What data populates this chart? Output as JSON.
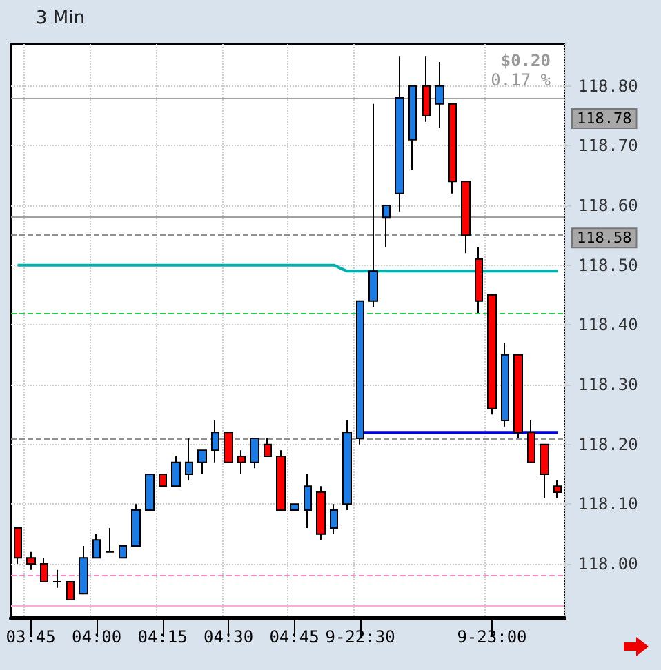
{
  "chart_data": {
    "type": "candlestick",
    "title": "3 Min",
    "categories": [
      null,
      "03:45",
      null,
      null,
      null,
      null,
      "04:00",
      null,
      null,
      null,
      null,
      "04:15",
      null,
      null,
      null,
      null,
      "04:30",
      null,
      null,
      null,
      null,
      "04:45",
      null,
      null,
      null,
      null,
      "9-22:30",
      null,
      null,
      null,
      null,
      null,
      null,
      null,
      null,
      null,
      "9-23:00",
      null,
      null,
      null,
      null,
      null
    ],
    "ohlc": [
      [
        118.06,
        118.06,
        118.0,
        118.01
      ],
      [
        118.01,
        118.02,
        117.99,
        118.0
      ],
      [
        118.0,
        118.01,
        117.97,
        117.97
      ],
      [
        117.97,
        117.99,
        117.96,
        117.97
      ],
      [
        117.97,
        117.97,
        117.94,
        117.94
      ],
      [
        117.95,
        118.03,
        117.95,
        118.01
      ],
      [
        118.01,
        118.05,
        118.01,
        118.04
      ],
      [
        118.02,
        118.06,
        118.02,
        118.02
      ],
      [
        118.01,
        118.03,
        118.01,
        118.03
      ],
      [
        118.03,
        118.1,
        118.03,
        118.09
      ],
      [
        118.09,
        118.15,
        118.09,
        118.15
      ],
      [
        118.15,
        118.15,
        118.13,
        118.13
      ],
      [
        118.13,
        118.18,
        118.13,
        118.17
      ],
      [
        118.15,
        118.21,
        118.14,
        118.17
      ],
      [
        118.17,
        118.19,
        118.15,
        118.19
      ],
      [
        118.19,
        118.24,
        118.17,
        118.22
      ],
      [
        118.22,
        118.22,
        118.17,
        118.17
      ],
      [
        118.18,
        118.19,
        118.15,
        118.17
      ],
      [
        118.17,
        118.21,
        118.16,
        118.21
      ],
      [
        118.2,
        118.21,
        118.18,
        118.18
      ],
      [
        118.18,
        118.19,
        118.09,
        118.09
      ],
      [
        118.09,
        118.1,
        118.09,
        118.1
      ],
      [
        118.09,
        118.15,
        118.06,
        118.13
      ],
      [
        118.12,
        118.13,
        118.04,
        118.05
      ],
      [
        118.06,
        118.1,
        118.05,
        118.09
      ],
      [
        118.1,
        118.24,
        118.09,
        118.22
      ],
      [
        118.21,
        118.44,
        118.2,
        118.44
      ],
      [
        118.44,
        118.77,
        118.43,
        118.49
      ],
      [
        118.58,
        118.6,
        118.53,
        118.6
      ],
      [
        118.62,
        118.85,
        118.59,
        118.78
      ],
      [
        118.71,
        118.8,
        118.66,
        118.8
      ],
      [
        118.8,
        118.85,
        118.74,
        118.75
      ],
      [
        118.77,
        118.84,
        118.73,
        118.8
      ],
      [
        118.77,
        118.77,
        118.62,
        118.64
      ],
      [
        118.64,
        118.64,
        118.52,
        118.55
      ],
      [
        118.51,
        118.53,
        118.42,
        118.44
      ],
      [
        118.45,
        118.45,
        118.25,
        118.26
      ],
      [
        118.24,
        118.37,
        118.23,
        118.35
      ],
      [
        118.35,
        118.35,
        118.21,
        118.22
      ],
      [
        118.22,
        118.24,
        118.17,
        118.17
      ],
      [
        118.2,
        118.2,
        118.11,
        118.15
      ],
      [
        118.13,
        118.14,
        118.11,
        118.12
      ]
    ],
    "colors": [
      "#ff0000",
      "#ff0000",
      "#ff0000",
      "#000000",
      "#ff0000",
      "#1c7ce6",
      "#1c7ce6",
      "#000000",
      "#1c7ce6",
      "#1c7ce6",
      "#1c7ce6",
      "#ff0000",
      "#1c7ce6",
      "#1c7ce6",
      "#1c7ce6",
      "#1c7ce6",
      "#ff0000",
      "#ff0000",
      "#1c7ce6",
      "#ff0000",
      "#ff0000",
      "#1c7ce6",
      "#1c7ce6",
      "#ff0000",
      "#1c7ce6",
      "#1c7ce6",
      "#1c7ce6",
      "#1c7ce6",
      "#1c7ce6",
      "#1c7ce6",
      "#1c7ce6",
      "#ff0000",
      "#1c7ce6",
      "#ff0000",
      "#ff0000",
      "#ff0000",
      "#ff0000",
      "#1c7ce6",
      "#ff0000",
      "#ff0000",
      "#ff0000",
      "#ff0000"
    ],
    "series": [
      {
        "type": "line",
        "color": "#00b0b0",
        "values": [
          118.5,
          118.5,
          118.5,
          118.5,
          118.5,
          118.5,
          118.5,
          118.5,
          118.5,
          118.5,
          118.5,
          118.5,
          118.5,
          118.5,
          118.5,
          118.5,
          118.5,
          118.5,
          118.5,
          118.5,
          118.5,
          118.5,
          118.5,
          118.5,
          118.5,
          118.49,
          118.49,
          118.49,
          118.49,
          118.49,
          118.49,
          118.49,
          118.49,
          118.49,
          118.49,
          118.49,
          118.49,
          118.49,
          118.49,
          118.49,
          118.49,
          118.49
        ]
      },
      {
        "type": "line",
        "color": "#0000ee",
        "values": [
          null,
          null,
          null,
          null,
          null,
          null,
          null,
          null,
          null,
          null,
          null,
          null,
          null,
          null,
          null,
          null,
          null,
          null,
          null,
          null,
          null,
          null,
          null,
          null,
          null,
          null,
          118.22,
          118.22,
          118.22,
          118.22,
          118.22,
          118.22,
          118.22,
          118.22,
          118.22,
          118.22,
          118.22,
          118.22,
          118.22,
          118.22,
          118.22,
          118.22
        ]
      }
    ],
    "ylim": [
      117.91,
      118.87
    ],
    "yticks": [
      {
        "value": 118.0,
        "label": "118.00"
      },
      {
        "value": 118.1,
        "label": "118.10"
      },
      {
        "value": 118.2,
        "label": "118.20"
      },
      {
        "value": 118.3,
        "label": "118.30"
      },
      {
        "value": 118.4,
        "label": "118.40"
      },
      {
        "value": 118.5,
        "label": "118.50"
      },
      {
        "value": 118.6,
        "label": "118.60"
      },
      {
        "value": 118.7,
        "label": "118.70"
      },
      {
        "value": 118.8,
        "label": "118.80"
      }
    ],
    "ref_lines": [
      {
        "axis": "y",
        "value": 118.78,
        "label": "118.78",
        "color": "#a0a0a0",
        "line_style": "solid"
      },
      {
        "axis": "y",
        "value": 118.58,
        "label": "118.58",
        "color": "#a0a0a0",
        "line_style": "solid"
      },
      {
        "axis": "y",
        "value": 118.55,
        "color": "#909090",
        "line_style": "dashed"
      },
      {
        "axis": "y",
        "value": 118.42,
        "color": "#22cc44",
        "line_style": "dashed"
      },
      {
        "axis": "y",
        "value": 118.21,
        "color": "#909090",
        "line_style": "dashed"
      },
      {
        "axis": "y",
        "value": 117.98,
        "color": "#ff88cc",
        "line_style": "dashed"
      },
      {
        "axis": "y",
        "value": 117.93,
        "color": "#ffaad8",
        "line_style": "solid"
      }
    ],
    "annotations": [
      "$0.20",
      "0.17 %"
    ],
    "grid": true
  }
}
